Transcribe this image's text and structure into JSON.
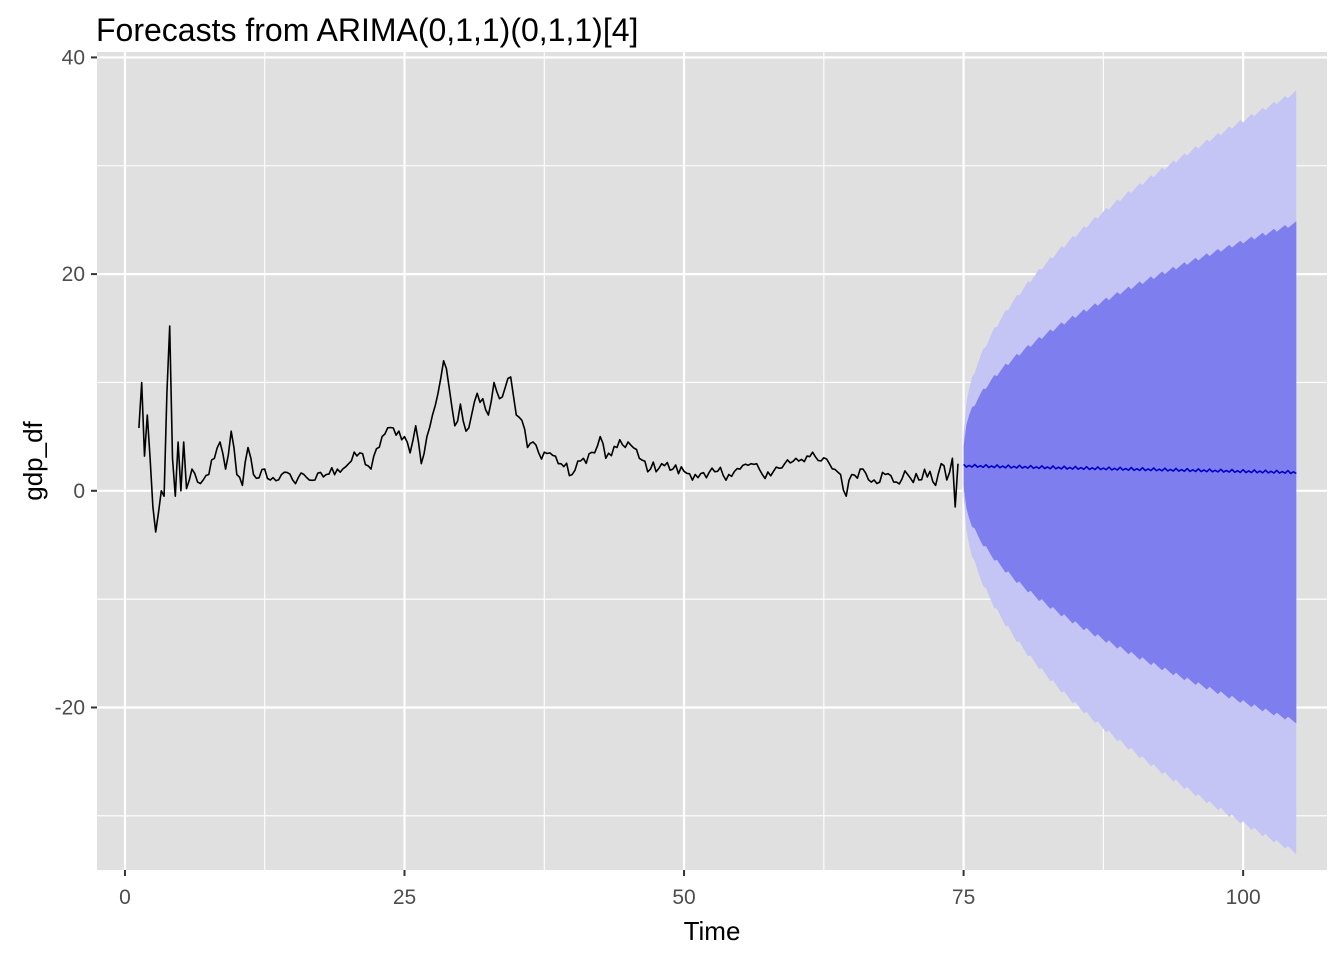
{
  "chart_data": {
    "type": "line",
    "title": "Forecasts from ARIMA(0,1,1)(0,1,1)[4]",
    "xlabel": "Time",
    "ylabel": "gdp_df",
    "xlim": [
      -2.5,
      107.5
    ],
    "ylim": [
      -35,
      40.5
    ],
    "x_ticks": [
      0,
      25,
      50,
      75,
      100
    ],
    "y_ticks": [
      -20,
      0,
      20,
      40
    ],
    "grid": true,
    "legend": "none",
    "colors": {
      "panel": "#e0e0e0",
      "grid": "#ffffff",
      "history": "#000000",
      "forecast": "#0000cc",
      "band80": "#7e7eee",
      "band95": "#c4c4f5"
    },
    "history_anchors": {
      "x": [
        1.25,
        1.5,
        1.75,
        2.0,
        2.25,
        2.5,
        2.75,
        3.0,
        3.25,
        3.5,
        3.75,
        4.0,
        4.25,
        4.5,
        4.75,
        5.0,
        5.25,
        5.5,
        5.75,
        6.0,
        6.5,
        7.0,
        7.5,
        8.0,
        8.5,
        9.0,
        9.5,
        10.0,
        10.5,
        11.0,
        11.5,
        12.0,
        12.5,
        13.0,
        14.0,
        15.0,
        16.0,
        17.0,
        18.0,
        19.0,
        20.0,
        21.0,
        22.0,
        23.0,
        24.0,
        25.0,
        25.5,
        26.0,
        26.5,
        27.0,
        27.5,
        28.0,
        28.5,
        29.0,
        29.5,
        30.0,
        30.5,
        31.0,
        31.5,
        32.0,
        32.5,
        33.0,
        33.5,
        34.0,
        34.5,
        35.0,
        35.5,
        36.0,
        36.5,
        37.0,
        38.0,
        39.0,
        40.0,
        41.0,
        42.0,
        42.5,
        43.0,
        44.0,
        45.0,
        46.0,
        47.0,
        48.0,
        49.0,
        50.0,
        51.0,
        52.0,
        53.0,
        54.0,
        55.0,
        56.0,
        57.0,
        58.0,
        59.0,
        60.0,
        61.0,
        62.0,
        63.0,
        64.0,
        64.5,
        65.0,
        66.0,
        67.0,
        68.0,
        69.0,
        70.0,
        71.0,
        72.0,
        72.5,
        73.0,
        73.5,
        74.0,
        74.25,
        74.5
      ],
      "y": [
        5.8,
        10.0,
        3.2,
        7.0,
        3.0,
        -1.5,
        -3.8,
        -2.0,
        0.0,
        -0.5,
        9.0,
        15.2,
        3.0,
        -0.5,
        4.5,
        0.0,
        4.5,
        0.2,
        1.0,
        2.0,
        0.8,
        1.0,
        1.5,
        3.0,
        4.5,
        2.0,
        5.5,
        1.5,
        0.5,
        4.0,
        1.5,
        1.2,
        2.0,
        1.0,
        1.5,
        1.0,
        1.5,
        1.0,
        1.5,
        2.0,
        2.5,
        3.5,
        2.0,
        5.0,
        5.8,
        5.0,
        3.5,
        6.0,
        2.5,
        5.0,
        7.0,
        9.0,
        12.0,
        9.5,
        6.0,
        8.0,
        5.5,
        7.0,
        9.0,
        8.5,
        7.0,
        10.0,
        8.5,
        9.5,
        10.5,
        7.0,
        6.5,
        4.0,
        4.5,
        3.5,
        3.5,
        2.5,
        1.5,
        3.0,
        3.5,
        5.0,
        3.0,
        4.0,
        4.5,
        3.0,
        2.0,
        2.5,
        2.0,
        1.8,
        1.5,
        1.2,
        1.8,
        1.5,
        2.0,
        2.5,
        1.5,
        1.8,
        2.5,
        3.0,
        3.2,
        2.8,
        2.5,
        1.5,
        -0.5,
        1.5,
        2.0,
        1.0,
        1.5,
        0.8,
        1.5,
        1.0,
        1.8,
        0.5,
        2.5,
        1.0,
        3.0,
        -1.5,
        2.5
      ]
    },
    "forecast": {
      "x_start": 75.0,
      "x_end": 104.75,
      "step": 0.25,
      "mean_start": 2.3,
      "mean_end": 1.7,
      "band80_start": [
        0.3,
        4.3
      ],
      "band80_end": [
        -21.3,
        24.7
      ],
      "band95_start": [
        -0.7,
        5.3
      ],
      "band95_end": [
        -33.4,
        36.8
      ]
    }
  }
}
